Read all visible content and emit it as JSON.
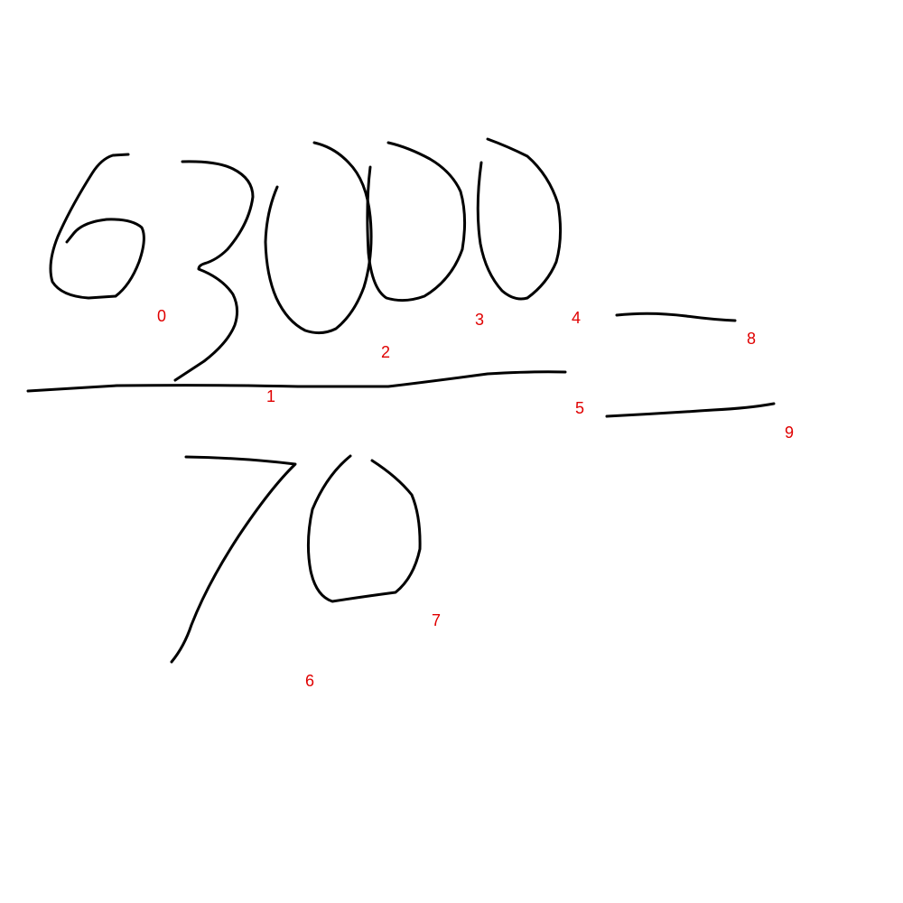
{
  "colors": {
    "background": "#ffffff",
    "ink": "#000000",
    "label": "#e00000"
  },
  "labels": [
    "0",
    "1",
    "2",
    "3",
    "4",
    "5",
    "6",
    "7",
    "8",
    "9"
  ]
}
